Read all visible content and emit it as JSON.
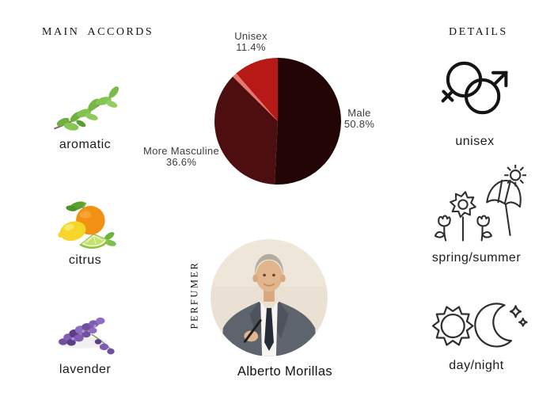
{
  "headers": {
    "main_accords": "MAIN ACCORDS",
    "details": "DETAILS"
  },
  "accords": [
    {
      "label": "aromatic",
      "icon": "aromatic-herb-photo"
    },
    {
      "label": "citrus",
      "icon": "citrus-fruits-photo"
    },
    {
      "label": "lavender",
      "icon": "lavender-photo"
    }
  ],
  "chart_data": {
    "type": "pie",
    "title": "",
    "legend_position": "none",
    "label_color": "#3d3d3d",
    "start_angle_deg": -90,
    "direction": "clockwise",
    "slices": [
      {
        "label": "Male",
        "value": 50.8,
        "display": "50.8%",
        "color": "#230505"
      },
      {
        "label": "More Masculine",
        "value": 36.6,
        "display": "36.6%",
        "color": "#4c0e0e"
      },
      {
        "label": "",
        "value": 1.2,
        "display": "",
        "color": "#e8766e"
      },
      {
        "label": "Unisex",
        "value": 11.4,
        "display": "11.4%",
        "color": "#b61916"
      }
    ]
  },
  "perfumer": {
    "section_label": "PERFUMER",
    "name": "Alberto Morillas"
  },
  "details": [
    {
      "label": "unisex",
      "icon": "gender-unisex-icon"
    },
    {
      "label": "spring/summer",
      "icon": "spring-summer-icon"
    },
    {
      "label": "day/night",
      "icon": "day-night-icon"
    }
  ]
}
